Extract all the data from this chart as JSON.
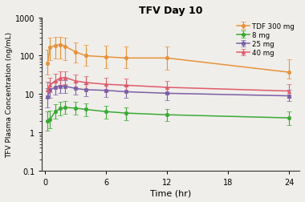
{
  "title": "TFV Day 10",
  "xlabel": "Time (hr)",
  "ylabel": "TFV Plasma Concentration (ng/mL)",
  "ylim": [
    0.1,
    1000
  ],
  "xlim": [
    -0.3,
    25
  ],
  "xticks": [
    0,
    6,
    12,
    18,
    24
  ],
  "yticks": [
    0.1,
    1,
    10,
    100,
    1000
  ],
  "ytick_labels": [
    "0.1",
    "1",
    "10",
    "100",
    "1000"
  ],
  "background_color": "#f0eeea",
  "series": [
    {
      "label": "TDF 300 mg",
      "color": "#e8923a",
      "marker": "o",
      "x": [
        0.25,
        0.5,
        1,
        1.5,
        2,
        3,
        4,
        6,
        8,
        12,
        24
      ],
      "y": [
        62,
        165,
        185,
        195,
        175,
        125,
        100,
        93,
        87,
        87,
        37
      ],
      "yerr_lo": [
        30,
        90,
        100,
        110,
        100,
        60,
        45,
        45,
        40,
        45,
        12
      ],
      "yerr_hi": [
        80,
        130,
        130,
        120,
        120,
        95,
        90,
        90,
        90,
        90,
        45
      ]
    },
    {
      "label": "8 mg",
      "color": "#3aaa35",
      "marker": "o",
      "x": [
        0.25,
        0.5,
        1,
        1.5,
        2,
        3,
        4,
        6,
        8,
        12,
        24
      ],
      "y": [
        2.0,
        2.2,
        3.5,
        4.2,
        4.5,
        4.3,
        4.0,
        3.5,
        3.2,
        2.9,
        2.4
      ],
      "yerr_lo": [
        0.9,
        0.9,
        1.2,
        1.4,
        1.5,
        1.4,
        1.3,
        1.2,
        1.1,
        0.9,
        0.8
      ],
      "yerr_hi": [
        1.5,
        1.5,
        2.0,
        2.0,
        2.0,
        2.0,
        1.8,
        1.5,
        1.4,
        1.2,
        1.2
      ]
    },
    {
      "label": "25 mg",
      "color": "#7b5ea7",
      "marker": "s",
      "x": [
        0.25,
        0.5,
        1,
        1.5,
        2,
        3,
        4,
        6,
        8,
        12,
        24
      ],
      "y": [
        8.5,
        13,
        15,
        16,
        16,
        14,
        13,
        12.5,
        11.5,
        10.5,
        9.0
      ],
      "yerr_lo": [
        4.0,
        5.0,
        5.5,
        5.5,
        5.5,
        4.5,
        4.0,
        4.0,
        3.5,
        3.5,
        2.5
      ],
      "yerr_hi": [
        6.0,
        7.0,
        7.0,
        7.0,
        7.0,
        6.0,
        5.5,
        5.5,
        5.0,
        4.5,
        4.0
      ]
    },
    {
      "label": "40 mg",
      "color": "#e05a6a",
      "marker": "^",
      "x": [
        0.25,
        0.5,
        1,
        1.5,
        2,
        3,
        4,
        6,
        8,
        12,
        24
      ],
      "y": [
        13,
        17,
        22,
        26,
        27,
        22,
        20,
        18,
        17,
        15,
        12
      ],
      "yerr_lo": [
        5.0,
        6.0,
        8.0,
        9.0,
        9.0,
        7.0,
        6.5,
        6.0,
        5.5,
        5.0,
        4.0
      ],
      "yerr_hi": [
        8.0,
        10.0,
        12.0,
        13.0,
        13.0,
        10.0,
        9.0,
        8.5,
        8.0,
        7.0,
        6.0
      ]
    }
  ]
}
